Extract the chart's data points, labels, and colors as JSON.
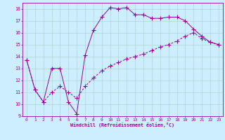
{
  "xlabel": "Windchill (Refroidissement éolien,°C)",
  "x_values": [
    0,
    1,
    2,
    3,
    4,
    5,
    6,
    7,
    8,
    9,
    10,
    11,
    12,
    13,
    14,
    15,
    16,
    17,
    18,
    19,
    20,
    21,
    22,
    23
  ],
  "line1_y": [
    13.7,
    11.2,
    10.2,
    13.0,
    13.0,
    10.2,
    9.2,
    14.1,
    16.2,
    17.3,
    18.1,
    18.0,
    18.1,
    17.5,
    17.5,
    17.2,
    17.2,
    17.3,
    17.3,
    17.0,
    16.3,
    15.7,
    15.2,
    15.0
  ],
  "line2_y": [
    13.7,
    11.2,
    10.2,
    11.0,
    11.5,
    11.0,
    10.5,
    11.5,
    12.2,
    12.8,
    13.2,
    13.5,
    13.8,
    14.0,
    14.2,
    14.5,
    14.8,
    15.0,
    15.3,
    15.7,
    16.0,
    15.5,
    15.2,
    15.0
  ],
  "line_color": "#990099",
  "bg_color": "#cceeff",
  "grid_color": "#aacccc",
  "xlim": [
    -0.5,
    23.5
  ],
  "ylim": [
    9,
    18.5
  ],
  "yticks": [
    9,
    10,
    11,
    12,
    13,
    14,
    15,
    16,
    17,
    18
  ],
  "xticks": [
    0,
    1,
    2,
    3,
    4,
    5,
    6,
    7,
    8,
    9,
    10,
    11,
    12,
    13,
    14,
    15,
    16,
    17,
    18,
    19,
    20,
    21,
    22,
    23
  ]
}
